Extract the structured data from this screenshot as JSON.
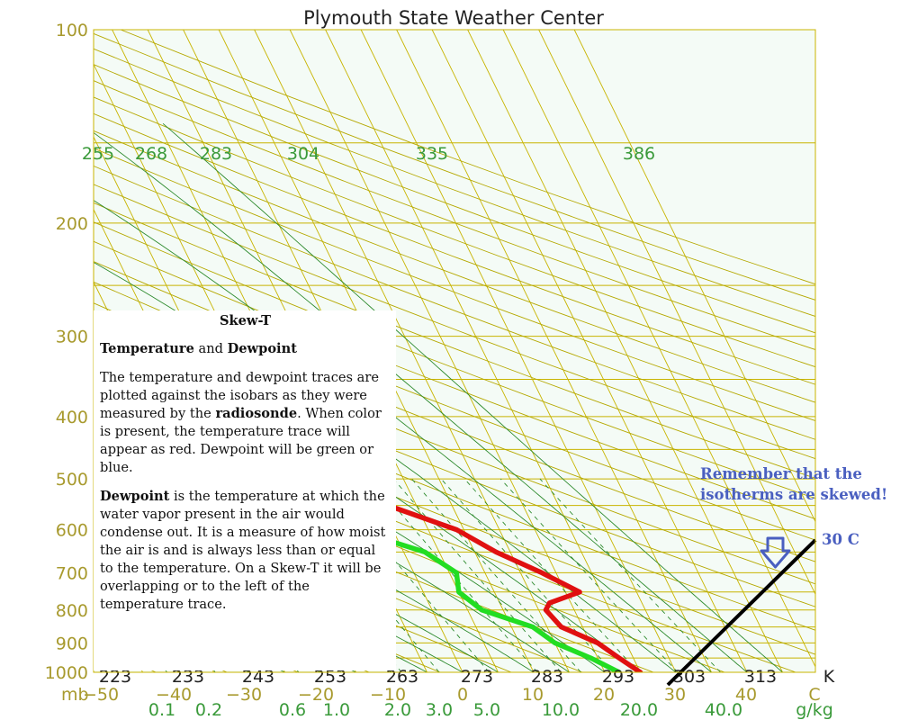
{
  "chart_data": {
    "type": "line",
    "title": "Plymouth State Weather Center",
    "pressure_labels": [
      "100",
      "200",
      "300",
      "400",
      "500",
      "600",
      "700",
      "800",
      "900",
      "1000"
    ],
    "pressure_unit": "mb",
    "temperature_ticks": [
      "−50",
      "−40",
      "−30",
      "−20",
      "−10",
      "0",
      "10",
      "20",
      "30",
      "40",
      "C"
    ],
    "temperature_ticks_kelvin": [
      "223",
      "233",
      "243",
      "253",
      "263",
      "273",
      "283",
      "293",
      "303",
      "313",
      "K"
    ],
    "mixing_ratio_ticks": [
      "0.1",
      "0.2",
      "0.6",
      "1.0",
      "2.0",
      "3.0",
      "5.0",
      "10.0",
      "20.0",
      "40.0"
    ],
    "mixing_ratio_unit": "g/kg",
    "theta_labels": [
      "255",
      "268",
      "283",
      "304",
      "335",
      "386"
    ],
    "series": [
      {
        "name": "Temperature",
        "color": "#e01010",
        "pressure": [
          1000,
          950,
          900,
          850,
          800,
          780,
          750,
          700,
          650,
          600,
          550,
          500,
          450,
          400,
          350,
          300,
          250,
          200,
          170,
          150,
          140,
          130,
          120,
          110,
          100
        ],
        "temperature": [
          25,
          23,
          21,
          17,
          16,
          17,
          22,
          18,
          13,
          9,
          1,
          -7,
          -13,
          -21,
          -30,
          -39,
          -48,
          -53,
          -62,
          -68,
          -67,
          -62,
          -57,
          -52,
          -47
        ]
      },
      {
        "name": "Dewpoint",
        "color": "#22dd22",
        "pressure": [
          1000,
          950,
          900,
          850,
          800,
          750,
          700,
          650,
          620,
          600,
          550,
          500,
          450,
          400,
          350,
          300,
          250,
          200,
          150,
          120,
          100
        ],
        "temperature": [
          22,
          19,
          15,
          13,
          7,
          5,
          6,
          3,
          -2,
          -6,
          -12,
          -21,
          -28,
          -31,
          -40,
          -53,
          -60,
          -75,
          -82,
          -88,
          -92
        ]
      }
    ],
    "annotation_isotherm": {
      "temperature": 30,
      "label": "30 C"
    }
  },
  "info_box": {
    "title": "Skew-T",
    "subtitle_bold_1": "Temperature",
    "subtitle_mid": " and ",
    "subtitle_bold_2": "Dewpoint",
    "para1_a": "The temperature and dewpoint traces are plotted against the isobars as they were measured by the ",
    "para1_bold": "radiosonde",
    "para1_b": ". When color is present, the temperature trace will appear as red. Dewpoint will be green or blue.",
    "para2_bold": "Dewpoint",
    "para2_a": " is the temperature at which the water vapor present in the air would condense out. It is a measure of how moist the air is and is always less than or equal to the temperature. On a Skew-T it will be overlapping or to the left of the temperature trace."
  },
  "note": {
    "text": "Remember that the isotherms are skewed!",
    "label_30c": "30 C"
  },
  "colors": {
    "grid_isotherm": "#c8b400",
    "grid_isobar": "#c8b400",
    "dry_adiabat": "#b5a800",
    "moist_adiabat": "#2e8b2e",
    "mixing_ratio": "#2e8b2e",
    "arrow": "#4a5fc0"
  }
}
